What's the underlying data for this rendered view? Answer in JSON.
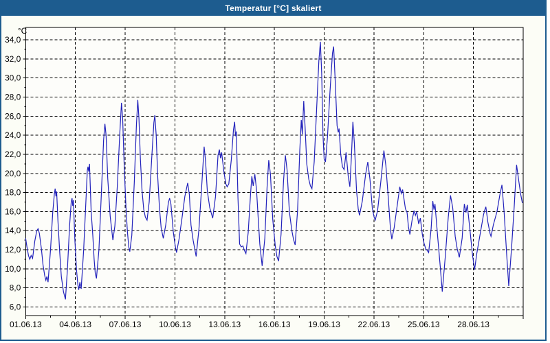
{
  "window": {
    "title": "Temperatur [°C] skaliert"
  },
  "colors": {
    "titlebar": "#1d5c8f",
    "frame": "#1d5c8f",
    "title_text": "#ffffff",
    "line": "#2222bb",
    "grid": "#000000",
    "plot_bg": "#fdfdfa",
    "window_bg": "#fcfdf6"
  },
  "chart_data": {
    "type": "line",
    "title": "Temperatur [°C] skaliert",
    "ylabel": "°C",
    "xlabel": "",
    "y_unit_label": "°C",
    "grid": "dashed",
    "legend": "none",
    "xlim_days": [
      0,
      30
    ],
    "ylim": [
      5.1,
      35.3
    ],
    "x_ticks": [
      {
        "t": 0,
        "label": "01.06.13"
      },
      {
        "t": 3,
        "label": "04.06.13"
      },
      {
        "t": 6,
        "label": "07.06.13"
      },
      {
        "t": 9,
        "label": "10.06.13"
      },
      {
        "t": 12,
        "label": "13.06.13"
      },
      {
        "t": 15,
        "label": "16.06.13"
      },
      {
        "t": 18,
        "label": "19.06.13"
      },
      {
        "t": 21,
        "label": "22.06.13"
      },
      {
        "t": 24,
        "label": "25.06.13"
      },
      {
        "t": 27,
        "label": "28.06.13"
      }
    ],
    "x_minor_ticks_days": [
      1.5,
      4.5,
      7.5,
      10.5,
      13.5,
      16.5,
      19.5,
      22.5,
      25.5,
      28.5
    ],
    "y_ticks": [
      {
        "v": 34,
        "label": "34,0"
      },
      {
        "v": 32,
        "label": "32,0"
      },
      {
        "v": 30,
        "label": "30,0"
      },
      {
        "v": 28,
        "label": "28,0"
      },
      {
        "v": 26,
        "label": "26,0"
      },
      {
        "v": 24,
        "label": "24,0"
      },
      {
        "v": 22,
        "label": "22,0"
      },
      {
        "v": 20,
        "label": "20,0"
      },
      {
        "v": 18,
        "label": "18,0"
      },
      {
        "v": 16,
        "label": "16,0"
      },
      {
        "v": 14,
        "label": "14,0"
      },
      {
        "v": 12,
        "label": "12,0"
      },
      {
        "v": 10,
        "label": "10,0"
      },
      {
        "v": 8,
        "label": "8,0"
      },
      {
        "v": 6,
        "label": "6,0"
      }
    ],
    "series": [
      {
        "name": "Temperatur [°C]",
        "color": "#2222bb",
        "points": [
          [
            0,
            13.2
          ],
          [
            0.08,
            12.3
          ],
          [
            0.17,
            11.4
          ],
          [
            0.25,
            11.0
          ],
          [
            0.33,
            11.4
          ],
          [
            0.42,
            11.1
          ],
          [
            0.55,
            12.9
          ],
          [
            0.67,
            14.0
          ],
          [
            0.75,
            14.2
          ],
          [
            0.83,
            13.7
          ],
          [
            0.95,
            12.1
          ],
          [
            1.05,
            10.4
          ],
          [
            1.15,
            9.3
          ],
          [
            1.22,
            8.8
          ],
          [
            1.28,
            9.2
          ],
          [
            1.35,
            8.6
          ],
          [
            1.5,
            12.0
          ],
          [
            1.63,
            15.8
          ],
          [
            1.73,
            17.8
          ],
          [
            1.78,
            18.4
          ],
          [
            1.83,
            17.6
          ],
          [
            1.87,
            18.1
          ],
          [
            1.95,
            15.0
          ],
          [
            2.05,
            11.8
          ],
          [
            2.15,
            9.2
          ],
          [
            2.28,
            7.6
          ],
          [
            2.4,
            6.8
          ],
          [
            2.52,
            10.0
          ],
          [
            2.65,
            14.5
          ],
          [
            2.75,
            17.0
          ],
          [
            2.8,
            17.4
          ],
          [
            2.84,
            16.6
          ],
          [
            2.88,
            17.2
          ],
          [
            2.97,
            13.0
          ],
          [
            3.07,
            9.8
          ],
          [
            3.15,
            8.3
          ],
          [
            3.2,
            7.8
          ],
          [
            3.27,
            8.6
          ],
          [
            3.35,
            7.9
          ],
          [
            3.5,
            12.0
          ],
          [
            3.63,
            17.0
          ],
          [
            3.72,
            20.3
          ],
          [
            3.76,
            20.7
          ],
          [
            3.8,
            20.2
          ],
          [
            3.85,
            21.0
          ],
          [
            3.95,
            16.0
          ],
          [
            4.05,
            13.5
          ],
          [
            4.13,
            11.0
          ],
          [
            4.2,
            9.5
          ],
          [
            4.27,
            9.0
          ],
          [
            4.42,
            12.0
          ],
          [
            4.57,
            18.0
          ],
          [
            4.7,
            23.5
          ],
          [
            4.78,
            25.2
          ],
          [
            4.85,
            24.0
          ],
          [
            4.95,
            19.5
          ],
          [
            5.1,
            15.5
          ],
          [
            5.26,
            13.0
          ],
          [
            5.38,
            14.5
          ],
          [
            5.52,
            18.5
          ],
          [
            5.67,
            24.0
          ],
          [
            5.78,
            27.4
          ],
          [
            5.85,
            25.8
          ],
          [
            5.95,
            20.5
          ],
          [
            6.05,
            16.5
          ],
          [
            6.13,
            14.0
          ],
          [
            6.22,
            12.3
          ],
          [
            6.28,
            11.8
          ],
          [
            6.4,
            13.5
          ],
          [
            6.55,
            19.0
          ],
          [
            6.68,
            25.0
          ],
          [
            6.76,
            27.7
          ],
          [
            6.83,
            25.8
          ],
          [
            6.92,
            21.5
          ],
          [
            7.02,
            18.2
          ],
          [
            7.12,
            16.2
          ],
          [
            7.22,
            15.4
          ],
          [
            7.32,
            15.1
          ],
          [
            7.45,
            17.0
          ],
          [
            7.6,
            21.5
          ],
          [
            7.73,
            25.3
          ],
          [
            7.79,
            26.1
          ],
          [
            7.87,
            24.0
          ],
          [
            7.96,
            19.8
          ],
          [
            8.07,
            16.3
          ],
          [
            8.17,
            14.3
          ],
          [
            8.3,
            13.2
          ],
          [
            8.45,
            14.6
          ],
          [
            8.6,
            16.9
          ],
          [
            8.68,
            17.4
          ],
          [
            8.76,
            16.8
          ],
          [
            8.9,
            13.9
          ],
          [
            9.02,
            12.4
          ],
          [
            9.1,
            11.7
          ],
          [
            9.25,
            13.1
          ],
          [
            9.42,
            15.2
          ],
          [
            9.6,
            17.6
          ],
          [
            9.77,
            19.0
          ],
          [
            9.87,
            17.8
          ],
          [
            9.97,
            14.6
          ],
          [
            10.1,
            13.0
          ],
          [
            10.28,
            11.3
          ],
          [
            10.45,
            14.2
          ],
          [
            10.62,
            18.8
          ],
          [
            10.76,
            22.8
          ],
          [
            10.85,
            21.3
          ],
          [
            10.95,
            18.2
          ],
          [
            11.1,
            16.4
          ],
          [
            11.28,
            15.3
          ],
          [
            11.45,
            17.6
          ],
          [
            11.6,
            21.9
          ],
          [
            11.68,
            22.5
          ],
          [
            11.75,
            21.6
          ],
          [
            11.82,
            22.2
          ],
          [
            11.95,
            20.2
          ],
          [
            12.07,
            18.9
          ],
          [
            12.15,
            18.6
          ],
          [
            12.25,
            18.9
          ],
          [
            12.4,
            21.4
          ],
          [
            12.53,
            24.6
          ],
          [
            12.6,
            25.4
          ],
          [
            12.65,
            23.9
          ],
          [
            12.7,
            24.4
          ],
          [
            12.8,
            17.5
          ],
          [
            12.9,
            12.6
          ],
          [
            13.0,
            12.3
          ],
          [
            13.1,
            12.4
          ],
          [
            13.2,
            11.9
          ],
          [
            13.28,
            11.6
          ],
          [
            13.42,
            13.8
          ],
          [
            13.56,
            17.8
          ],
          [
            13.64,
            19.7
          ],
          [
            13.72,
            18.7
          ],
          [
            13.82,
            19.9
          ],
          [
            13.92,
            18.3
          ],
          [
            14.02,
            15.4
          ],
          [
            14.12,
            12.6
          ],
          [
            14.26,
            10.3
          ],
          [
            14.42,
            13.2
          ],
          [
            14.56,
            18.6
          ],
          [
            14.66,
            21.4
          ],
          [
            14.76,
            19.9
          ],
          [
            14.9,
            15.2
          ],
          [
            15.05,
            12.4
          ],
          [
            15.15,
            11.3
          ],
          [
            15.25,
            10.8
          ],
          [
            15.4,
            13.6
          ],
          [
            15.55,
            19.2
          ],
          [
            15.66,
            21.9
          ],
          [
            15.76,
            20.4
          ],
          [
            15.9,
            16.0
          ],
          [
            16.05,
            14.0
          ],
          [
            16.15,
            13.1
          ],
          [
            16.25,
            12.5
          ],
          [
            16.4,
            16.2
          ],
          [
            16.53,
            22.5
          ],
          [
            16.62,
            25.6
          ],
          [
            16.68,
            24.1
          ],
          [
            16.77,
            27.6
          ],
          [
            16.85,
            24.8
          ],
          [
            16.95,
            21.0
          ],
          [
            17.07,
            19.4
          ],
          [
            17.17,
            18.7
          ],
          [
            17.26,
            18.4
          ],
          [
            17.4,
            21.2
          ],
          [
            17.55,
            27.0
          ],
          [
            17.68,
            31.8
          ],
          [
            17.77,
            33.8
          ],
          [
            17.85,
            30.5
          ],
          [
            17.93,
            24.0
          ],
          [
            18.0,
            21.5
          ],
          [
            18.08,
            21.2
          ],
          [
            18.2,
            23.8
          ],
          [
            18.35,
            28.6
          ],
          [
            18.5,
            32.6
          ],
          [
            18.57,
            33.3
          ],
          [
            18.67,
            29.5
          ],
          [
            18.78,
            25.0
          ],
          [
            18.85,
            24.3
          ],
          [
            18.9,
            24.7
          ],
          [
            19.0,
            22.0
          ],
          [
            19.1,
            20.7
          ],
          [
            19.2,
            20.4
          ],
          [
            19.32,
            22.2
          ],
          [
            19.45,
            19.7
          ],
          [
            19.55,
            18.6
          ],
          [
            19.65,
            22.0
          ],
          [
            19.73,
            25.4
          ],
          [
            19.82,
            23.2
          ],
          [
            19.95,
            18.2
          ],
          [
            20.05,
            16.3
          ],
          [
            20.13,
            15.6
          ],
          [
            20.3,
            17.1
          ],
          [
            20.5,
            19.9
          ],
          [
            20.63,
            21.2
          ],
          [
            20.76,
            19.4
          ],
          [
            20.9,
            16.4
          ],
          [
            21.0,
            15.5
          ],
          [
            21.08,
            15.1
          ],
          [
            21.22,
            16.1
          ],
          [
            21.42,
            19.2
          ],
          [
            21.6,
            22.4
          ],
          [
            21.72,
            20.8
          ],
          [
            21.87,
            17.3
          ],
          [
            22.0,
            14.1
          ],
          [
            22.08,
            13.1
          ],
          [
            22.22,
            14.3
          ],
          [
            22.4,
            16.6
          ],
          [
            22.56,
            18.6
          ],
          [
            22.65,
            17.9
          ],
          [
            22.73,
            18.3
          ],
          [
            22.9,
            16.3
          ],
          [
            23.0,
            15.9
          ],
          [
            23.08,
            14.4
          ],
          [
            23.17,
            13.6
          ],
          [
            23.3,
            15.1
          ],
          [
            23.42,
            16.1
          ],
          [
            23.5,
            15.6
          ],
          [
            23.58,
            16.0
          ],
          [
            23.7,
            14.7
          ],
          [
            23.8,
            15.3
          ],
          [
            23.92,
            13.6
          ],
          [
            24.02,
            12.7
          ],
          [
            24.12,
            12.1
          ],
          [
            24.22,
            11.9
          ],
          [
            24.3,
            11.7
          ],
          [
            24.45,
            14.2
          ],
          [
            24.55,
            17.1
          ],
          [
            24.62,
            16.2
          ],
          [
            24.68,
            16.8
          ],
          [
            24.85,
            13.2
          ],
          [
            25.0,
            10.2
          ],
          [
            25.12,
            7.6
          ],
          [
            25.3,
            11.2
          ],
          [
            25.48,
            15.4
          ],
          [
            25.62,
            17.7
          ],
          [
            25.75,
            16.4
          ],
          [
            25.9,
            13.4
          ],
          [
            26.02,
            12.1
          ],
          [
            26.15,
            11.2
          ],
          [
            26.32,
            13.2
          ],
          [
            26.45,
            16.8
          ],
          [
            26.55,
            15.9
          ],
          [
            26.63,
            16.7
          ],
          [
            26.8,
            13.9
          ],
          [
            26.95,
            11.4
          ],
          [
            27.07,
            9.9
          ],
          [
            27.2,
            11.6
          ],
          [
            27.4,
            13.6
          ],
          [
            27.6,
            15.6
          ],
          [
            27.67,
            16.1
          ],
          [
            27.75,
            16.5
          ],
          [
            27.87,
            14.9
          ],
          [
            28.0,
            13.7
          ],
          [
            28.06,
            13.4
          ],
          [
            28.2,
            14.6
          ],
          [
            28.42,
            16.0
          ],
          [
            28.6,
            17.8
          ],
          [
            28.72,
            18.8
          ],
          [
            28.85,
            15.9
          ],
          [
            29.0,
            11.6
          ],
          [
            29.13,
            8.2
          ],
          [
            29.3,
            12.2
          ],
          [
            29.46,
            16.6
          ],
          [
            29.6,
            20.9
          ],
          [
            29.72,
            19.4
          ],
          [
            29.85,
            17.8
          ],
          [
            29.95,
            16.9
          ]
        ]
      }
    ]
  }
}
